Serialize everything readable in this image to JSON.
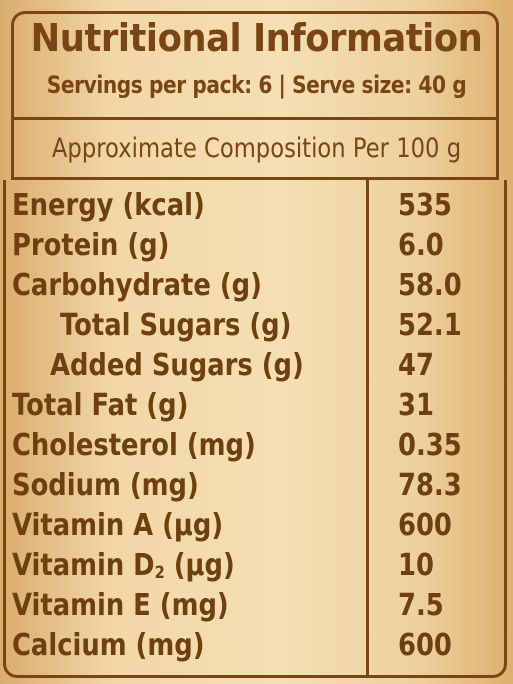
{
  "label": {
    "title": "Nutritional Information",
    "servings": "Servings per pack: 6  |  Serve size: 40 g",
    "composition_header": "Approximate Composition Per 100 g"
  },
  "nutrients": [
    {
      "name": "Energy (kcal)",
      "value": "535"
    },
    {
      "name": "Protein (g)",
      "value": "6.0"
    },
    {
      "name": "Carbohydrate (g)",
      "value": "58.0"
    },
    {
      "name": "Total Sugars (g)",
      "value": "52.1"
    },
    {
      "name": "Added Sugars (g)",
      "value": "47"
    },
    {
      "name": "Total Fat (g)",
      "value": "31"
    },
    {
      "name": "Cholesterol (mg)",
      "value": "0.35"
    },
    {
      "name": "Sodium (mg)",
      "value": "78.3"
    },
    {
      "name": "Vitamin A (µg)",
      "value": "600"
    },
    {
      "name_prefix": "Vitamin D",
      "name_sub": "2",
      "name_suffix": " (µg)",
      "value": "10"
    },
    {
      "name": "Vitamin E (mg)",
      "value": "7.5"
    },
    {
      "name": "Calcium (mg)",
      "value": "600"
    }
  ],
  "colors": {
    "text": "#6e3f0f",
    "border": "#7a4514",
    "background": "#f2d7a6"
  }
}
